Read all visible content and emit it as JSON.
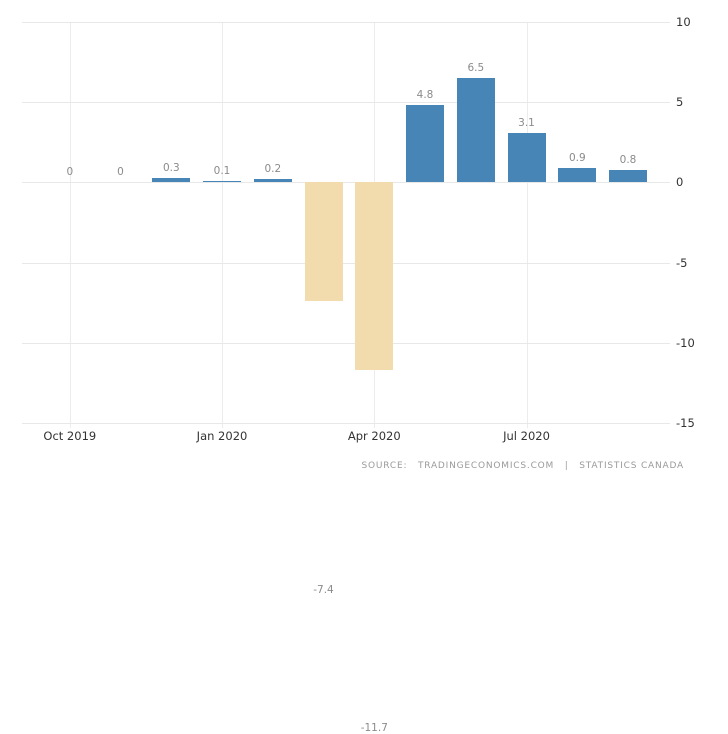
{
  "chart_data": {
    "type": "bar",
    "title": "",
    "xlabel": "",
    "ylabel": "",
    "categories": [
      "Oct 2019",
      "Nov 2019",
      "Dec 2019",
      "Jan 2020",
      "Feb 2020",
      "Mar 2020",
      "Apr 2020",
      "May 2020",
      "Jun 2020",
      "Jul 2020",
      "Aug 2020",
      "Sep 2020"
    ],
    "values": [
      0,
      0,
      0.3,
      0.1,
      0.2,
      -7.4,
      -11.7,
      4.8,
      6.5,
      3.1,
      0.9,
      0.8
    ],
    "value_labels": [
      "0",
      "0",
      "0.3",
      "0.1",
      "0.2",
      "-7.4",
      "-11.7",
      "4.8",
      "6.5",
      "3.1",
      "0.9",
      "0.8"
    ],
    "x_tick_labels": [
      "Oct 2019",
      "Jan 2020",
      "Apr 2020",
      "Jul 2020"
    ],
    "x_tick_indices": [
      0,
      3,
      6,
      9
    ],
    "y_ticks": [
      10,
      5,
      0,
      -5,
      -10,
      -15
    ],
    "ylim": [
      -15,
      10
    ],
    "grid": true,
    "legend": "none",
    "colors": {
      "positive_bar": "#4685b5",
      "negative_bar": "#f2dcae",
      "grid": "#e8e8e8",
      "value_label": "#8b8b8b",
      "axis_label": "#333333",
      "source_text": "#9a9a9a"
    }
  },
  "source": {
    "prefix": "SOURCE:",
    "site": "TRADINGECONOMICS.COM",
    "separator": "|",
    "provider": "STATISTICS CANADA"
  }
}
